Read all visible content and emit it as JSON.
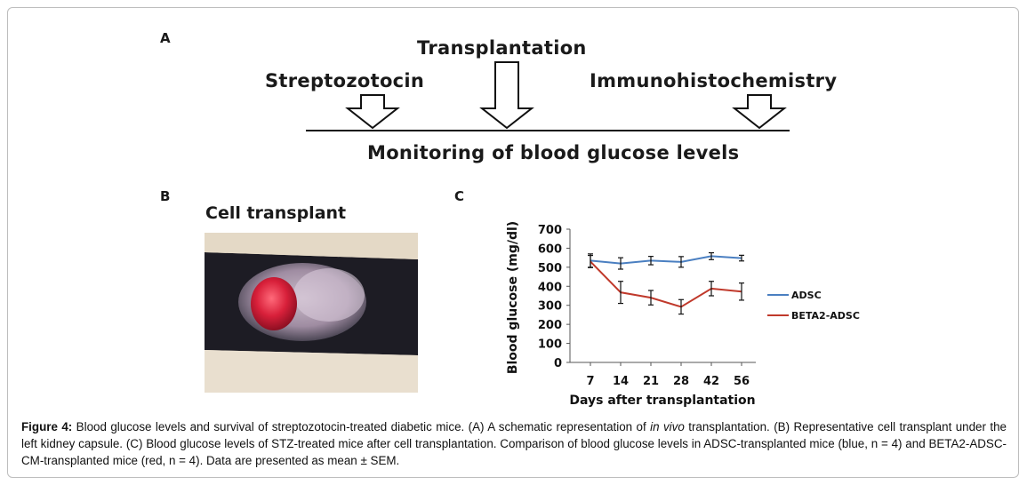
{
  "panel_a": {
    "letter": "A",
    "transplantation": "Transplantation",
    "streptozotocin": "Streptozotocin",
    "immunohistochemistry": "Immunohistochemistry",
    "monitoring": "Monitoring of blood glucose levels"
  },
  "panel_b": {
    "letter": "B",
    "title": "Cell transplant"
  },
  "panel_c": {
    "letter": "C"
  },
  "chart_data": {
    "type": "line",
    "categories": [
      "7",
      "14",
      "21",
      "28",
      "42",
      "56"
    ],
    "ylabel": "Blood glucose (mg/dl)",
    "xlabel": "Days after transplantation",
    "ylim": [
      0,
      700
    ],
    "yticks": [
      0,
      100,
      200,
      300,
      400,
      500,
      600,
      700
    ],
    "legend_position": "right",
    "series": [
      {
        "name": "ADSC",
        "color": "#4a7fc1",
        "values": [
          535,
          520,
          535,
          528,
          558,
          548
        ],
        "errors": [
          35,
          30,
          22,
          28,
          18,
          15
        ]
      },
      {
        "name": "BETA2-ADSC",
        "color": "#c0392b",
        "values": [
          530,
          368,
          340,
          292,
          388,
          372
        ],
        "errors": [
          32,
          58,
          38,
          38,
          38,
          45
        ]
      }
    ]
  },
  "caption": {
    "label": "Figure 4:",
    "part1": " Blood glucose levels and survival of streptozotocin-treated diabetic mice. (A) A schematic representation of ",
    "italic": "in vivo",
    "part2": " transplantation. (B) Representative cell transplant under the left kidney capsule. (C) Blood glucose levels of STZ-treated mice after cell transplantation. Comparison of blood glucose levels in ADSC-transplanted mice (blue, n = 4) and BETA2-ADSC-CM-transplanted mice (red, n = 4). Data are presented as mean ± SEM."
  }
}
